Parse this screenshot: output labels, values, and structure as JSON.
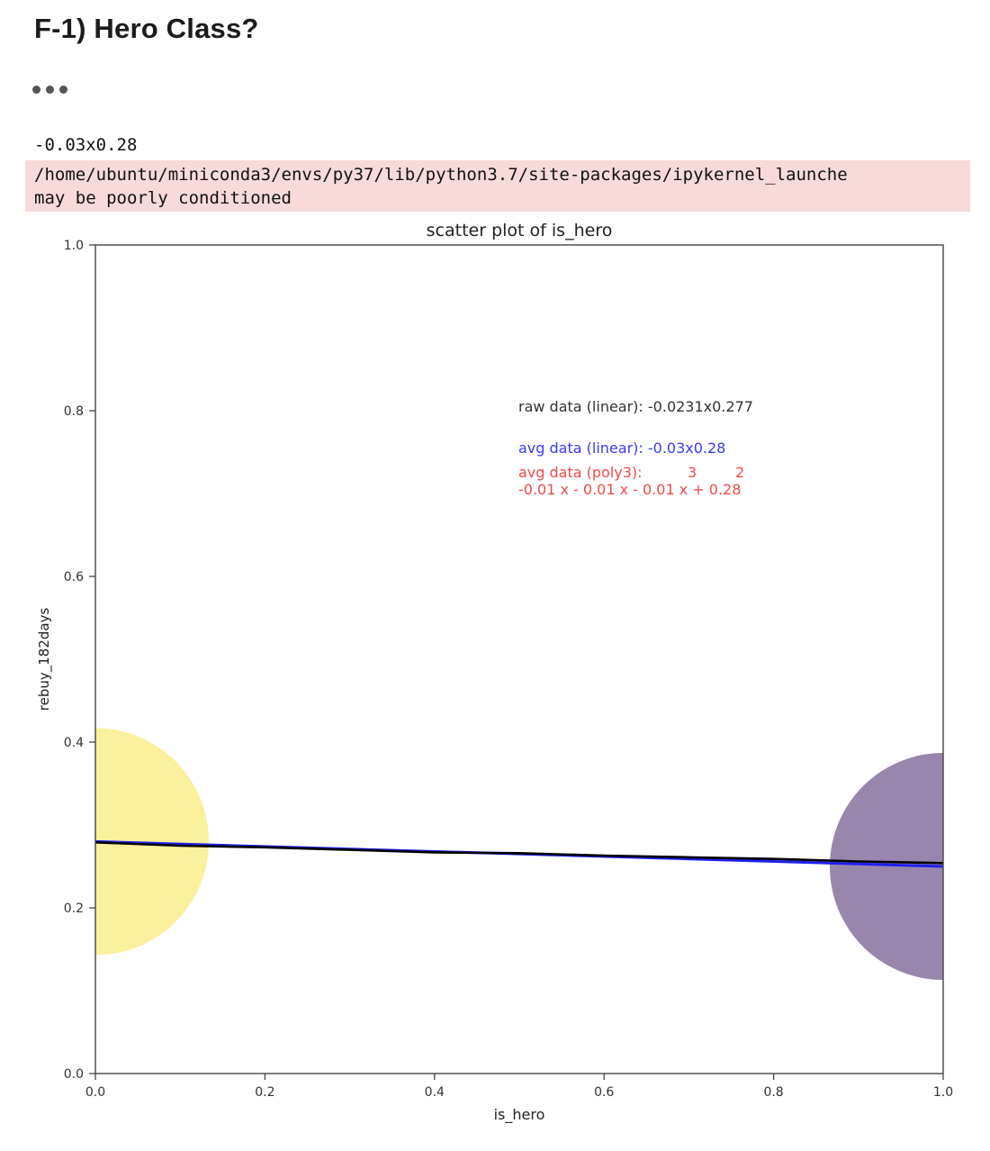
{
  "notebook": {
    "heading": "F-1) Hero Class?",
    "stdout_text": "-0.03x0.28",
    "stderr_lines": [
      "/home/ubuntu/miniconda3/envs/py37/lib/python3.7/site-packages/ipykernel_launche",
      "may be poorly conditioned"
    ]
  },
  "chart_data": {
    "type": "scatter",
    "title": "scatter plot of is_hero",
    "xlabel": "is_hero",
    "ylabel": "rebuy_182days",
    "xlim": [
      0.0,
      1.0
    ],
    "ylim": [
      0.0,
      1.0
    ],
    "x_ticks": [
      "0.0",
      "0.2",
      "0.4",
      "0.6",
      "0.8",
      "1.0"
    ],
    "y_ticks": [
      "0.0",
      "0.2",
      "0.4",
      "0.6",
      "0.8",
      "1.0"
    ],
    "grid": false,
    "points": [
      {
        "x": 0.0,
        "y": 0.28,
        "color": "#f9ea72",
        "opacity": 0.7
      },
      {
        "x": 1.0,
        "y": 0.25,
        "color": "#5b3b7b",
        "opacity": 0.62
      }
    ],
    "lines": [
      {
        "kind": "linear",
        "color": "#2020ee",
        "points": [
          [
            0.0,
            0.28
          ],
          [
            1.0,
            0.25
          ]
        ]
      },
      {
        "kind": "poly3",
        "color": "#000000",
        "points": [
          [
            0.0,
            0.279
          ],
          [
            0.1,
            0.275
          ],
          [
            0.2,
            0.273
          ],
          [
            0.3,
            0.27
          ],
          [
            0.4,
            0.267
          ],
          [
            0.5,
            0.266
          ],
          [
            0.6,
            0.263
          ],
          [
            0.7,
            0.261
          ],
          [
            0.8,
            0.259
          ],
          [
            0.9,
            0.256
          ],
          [
            1.0,
            0.254
          ]
        ]
      }
    ],
    "annotations": {
      "raw": {
        "text": "raw data (linear): -0.0231x0.277",
        "color": "#333333"
      },
      "avg_linear": {
        "text": "avg data (linear): -0.03x0.28",
        "color": "#3a3af2"
      },
      "avg_poly_title": {
        "text": "avg data (poly3):",
        "color": "#ef4a4a"
      },
      "avg_poly_exponents": [
        "3",
        "2"
      ],
      "avg_poly_equation": {
        "text": "-0.01 x - 0.01 x - 0.01 x + 0.28",
        "color": "#ef4a4a"
      }
    }
  }
}
